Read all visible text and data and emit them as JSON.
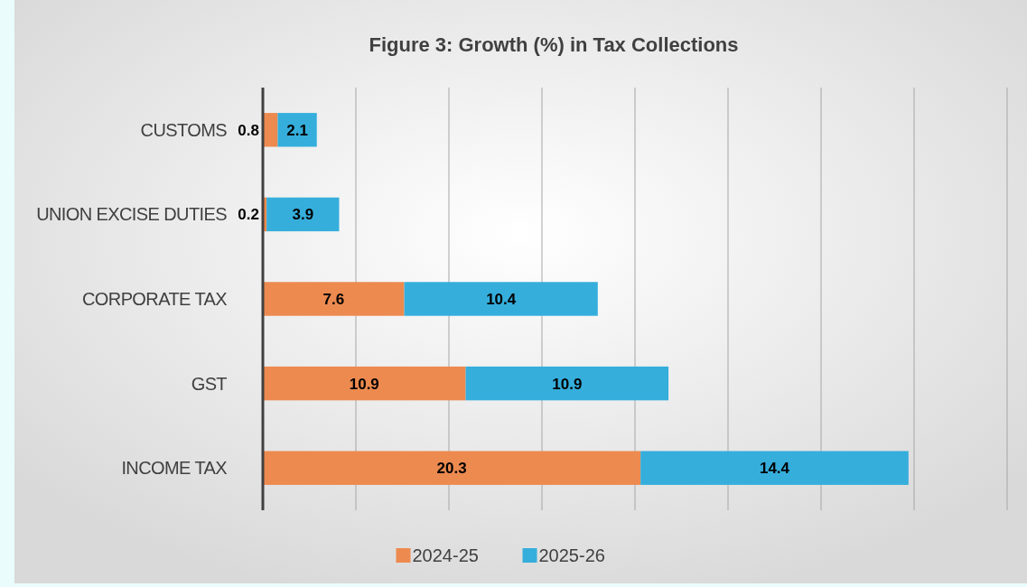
{
  "chart_data": {
    "type": "bar",
    "orientation": "horizontal",
    "stacked": true,
    "title": "Figure 3: Growth (%) in Tax Collections",
    "categories": [
      "CUSTOMS",
      "UNION EXCISE DUTIES",
      "CORPORATE TAX",
      "GST",
      "INCOME TAX"
    ],
    "series": [
      {
        "name": "2024-25",
        "color": "#ed8a4f",
        "values": [
          0.8,
          0.2,
          7.6,
          10.9,
          20.3
        ]
      },
      {
        "name": "2025-26",
        "color": "#35aedc",
        "values": [
          2.1,
          3.9,
          10.4,
          10.9,
          14.4
        ]
      }
    ],
    "xlim": [
      0,
      40
    ],
    "xticks": [
      {
        "value": 0,
        "label": null
      },
      {
        "value": 5,
        "label": null
      },
      {
        "value": 10,
        "label": null
      },
      {
        "value": 15,
        "label": null
      },
      {
        "value": 20,
        "label": null
      },
      {
        "value": 25,
        "label": null
      },
      {
        "value": 30,
        "label": null
      },
      {
        "value": 35,
        "label": null
      },
      {
        "value": 40,
        "label": null
      }
    ],
    "tick_labels": "y",
    "grid": "x",
    "legend": "bottom",
    "data_labels": true
  }
}
